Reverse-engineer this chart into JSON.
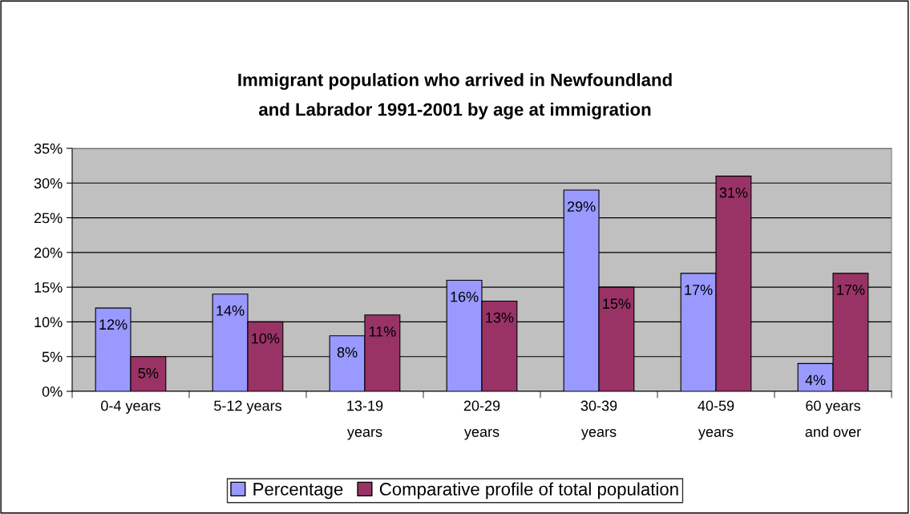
{
  "chart_data": {
    "type": "bar",
    "title": "Immigrant population who arrived in Newfoundland\nand Labrador 1991-2001 by age at immigration",
    "categories": [
      "0-4 years",
      "5-12 years",
      "13-19\nyears",
      "20-29\nyears",
      "30-39\nyears",
      "40-59\nyears",
      "60 years\nand over"
    ],
    "series": [
      {
        "name": "Percentage",
        "color": "#9999ff",
        "values": [
          12,
          14,
          8,
          16,
          29,
          17,
          4
        ],
        "value_labels": [
          "12%",
          "14%",
          "8%",
          "16%",
          "29%",
          "17%",
          "4%"
        ]
      },
      {
        "name": "Comparative profile of total population",
        "color": "#993366",
        "values": [
          5,
          10,
          11,
          13,
          15,
          31,
          17
        ],
        "value_labels": [
          "5%",
          "10%",
          "11%",
          "13%",
          "15%",
          "31%",
          "17%"
        ]
      }
    ],
    "ylim": [
      0,
      35
    ],
    "yticks": [
      {
        "value": 0,
        "label": "0%"
      },
      {
        "value": 5,
        "label": "5%"
      },
      {
        "value": 10,
        "label": "10%"
      },
      {
        "value": 15,
        "label": "15%"
      },
      {
        "value": 20,
        "label": "20%"
      },
      {
        "value": 25,
        "label": "25%"
      },
      {
        "value": 30,
        "label": "30%"
      },
      {
        "value": 35,
        "label": "35%"
      }
    ],
    "grid": "y",
    "legend": "bottom"
  }
}
